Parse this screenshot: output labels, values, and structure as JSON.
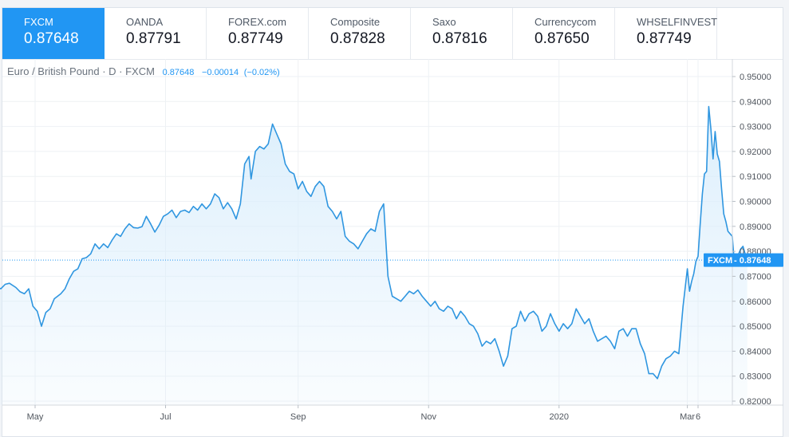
{
  "tabs": [
    {
      "name": "FXCM",
      "price": "0.87648",
      "active": true
    },
    {
      "name": "OANDA",
      "price": "0.87791"
    },
    {
      "name": "FOREX.com",
      "price": "0.87749"
    },
    {
      "name": "Composite",
      "price": "0.87828"
    },
    {
      "name": "Saxo",
      "price": "0.87816"
    },
    {
      "name": "Currencycom",
      "price": "0.87650"
    },
    {
      "name": "WHSELFINVEST",
      "price": "0.87749"
    }
  ],
  "legend": {
    "symbol": "Euro / British Pound · D · FXCM",
    "last": "0.87648",
    "change": "−0.00014",
    "change_pct": "(−0.02%)"
  },
  "price_badge": {
    "label": "FXCM",
    "value": "0.87648"
  },
  "colors": {
    "accent": "#2196f3",
    "line": "#2f96e0",
    "grid": "#eef1f4",
    "fill": "#dbeefc"
  },
  "chart_data": {
    "type": "area",
    "title": "",
    "xlabel": "",
    "ylabel": "",
    "ylim": [
      0.8195,
      0.9525
    ],
    "y_ticks": [
      "0.95000",
      "0.94000",
      "0.93000",
      "0.92000",
      "0.91000",
      "0.90000",
      "0.89000",
      "0.88000",
      "0.87000",
      "0.86000",
      "0.85000",
      "0.84000",
      "0.83000",
      "0.82000"
    ],
    "x_ticks": [
      {
        "label": "May",
        "date": "2019-05-01"
      },
      {
        "label": "Jul",
        "date": "2019-07-01"
      },
      {
        "label": "Sep",
        "date": "2019-09-01"
      },
      {
        "label": "Nov",
        "date": "2019-11-01"
      },
      {
        "label": "2020",
        "date": "2020-01-01"
      },
      {
        "label": "Mar",
        "date": "2020-03-01"
      },
      {
        "label": "6",
        "date": "2020-03-06"
      }
    ],
    "last_value": 0.87648,
    "series": [
      {
        "values": [
          [
            "2019-04-08",
            0.8622
          ],
          [
            "2019-04-10",
            0.8645
          ],
          [
            "2019-04-12",
            0.866
          ],
          [
            "2019-04-15",
            0.865
          ],
          [
            "2019-04-17",
            0.8668
          ],
          [
            "2019-04-19",
            0.8672
          ],
          [
            "2019-04-22",
            0.8655
          ],
          [
            "2019-04-24",
            0.8638
          ],
          [
            "2019-04-26",
            0.863
          ],
          [
            "2019-04-28",
            0.865
          ],
          [
            "2019-04-30",
            0.858
          ],
          [
            "2019-05-02",
            0.856
          ],
          [
            "2019-05-04",
            0.85
          ],
          [
            "2019-05-06",
            0.8555
          ],
          [
            "2019-05-08",
            0.857
          ],
          [
            "2019-05-10",
            0.861
          ],
          [
            "2019-05-13",
            0.863
          ],
          [
            "2019-05-15",
            0.865
          ],
          [
            "2019-05-17",
            0.869
          ],
          [
            "2019-05-19",
            0.872
          ],
          [
            "2019-05-21",
            0.873
          ],
          [
            "2019-05-23",
            0.877
          ],
          [
            "2019-05-25",
            0.8775
          ],
          [
            "2019-05-27",
            0.879
          ],
          [
            "2019-05-29",
            0.883
          ],
          [
            "2019-05-31",
            0.881
          ],
          [
            "2019-06-02",
            0.883
          ],
          [
            "2019-06-04",
            0.8815
          ],
          [
            "2019-06-06",
            0.8845
          ],
          [
            "2019-06-08",
            0.887
          ],
          [
            "2019-06-10",
            0.886
          ],
          [
            "2019-06-12",
            0.889
          ],
          [
            "2019-06-14",
            0.891
          ],
          [
            "2019-06-16",
            0.8895
          ],
          [
            "2019-06-18",
            0.8893
          ],
          [
            "2019-06-20",
            0.8899
          ],
          [
            "2019-06-22",
            0.894
          ],
          [
            "2019-06-24",
            0.891
          ],
          [
            "2019-06-26",
            0.8877
          ],
          [
            "2019-06-28",
            0.8905
          ],
          [
            "2019-06-30",
            0.894
          ],
          [
            "2019-07-02",
            0.895
          ],
          [
            "2019-07-04",
            0.8965
          ],
          [
            "2019-07-06",
            0.8935
          ],
          [
            "2019-07-08",
            0.896
          ],
          [
            "2019-07-10",
            0.8965
          ],
          [
            "2019-07-12",
            0.8955
          ],
          [
            "2019-07-14",
            0.898
          ],
          [
            "2019-07-16",
            0.8965
          ],
          [
            "2019-07-18",
            0.899
          ],
          [
            "2019-07-20",
            0.897
          ],
          [
            "2019-07-22",
            0.899
          ],
          [
            "2019-07-24",
            0.903
          ],
          [
            "2019-07-26",
            0.9015
          ],
          [
            "2019-07-28",
            0.897
          ],
          [
            "2019-07-30",
            0.8995
          ],
          [
            "2019-08-01",
            0.897
          ],
          [
            "2019-08-03",
            0.893
          ],
          [
            "2019-08-05",
            0.899
          ],
          [
            "2019-08-07",
            0.915
          ],
          [
            "2019-08-09",
            0.918
          ],
          [
            "2019-08-10",
            0.909
          ],
          [
            "2019-08-12",
            0.92
          ],
          [
            "2019-08-14",
            0.922
          ],
          [
            "2019-08-16",
            0.921
          ],
          [
            "2019-08-18",
            0.923
          ],
          [
            "2019-08-20",
            0.931
          ],
          [
            "2019-08-22",
            0.927
          ],
          [
            "2019-08-24",
            0.923
          ],
          [
            "2019-08-26",
            0.915
          ],
          [
            "2019-08-28",
            0.912
          ],
          [
            "2019-08-30",
            0.911
          ],
          [
            "2019-09-01",
            0.905
          ],
          [
            "2019-09-03",
            0.908
          ],
          [
            "2019-09-05",
            0.904
          ],
          [
            "2019-09-07",
            0.902
          ],
          [
            "2019-09-09",
            0.906
          ],
          [
            "2019-09-11",
            0.908
          ],
          [
            "2019-09-13",
            0.906
          ],
          [
            "2019-09-15",
            0.898
          ],
          [
            "2019-09-17",
            0.896
          ],
          [
            "2019-09-19",
            0.893
          ],
          [
            "2019-09-21",
            0.896
          ],
          [
            "2019-09-23",
            0.886
          ],
          [
            "2019-09-25",
            0.884
          ],
          [
            "2019-09-27",
            0.883
          ],
          [
            "2019-09-29",
            0.881
          ],
          [
            "2019-10-01",
            0.884
          ],
          [
            "2019-10-03",
            0.887
          ],
          [
            "2019-10-05",
            0.889
          ],
          [
            "2019-10-07",
            0.888
          ],
          [
            "2019-10-09",
            0.896
          ],
          [
            "2019-10-11",
            0.899
          ],
          [
            "2019-10-13",
            0.87
          ],
          [
            "2019-10-15",
            0.862
          ],
          [
            "2019-10-17",
            0.861
          ],
          [
            "2019-10-19",
            0.86
          ],
          [
            "2019-10-21",
            0.862
          ],
          [
            "2019-10-23",
            0.864
          ],
          [
            "2019-10-25",
            0.863
          ],
          [
            "2019-10-27",
            0.8645
          ],
          [
            "2019-10-29",
            0.862
          ],
          [
            "2019-10-31",
            0.86
          ],
          [
            "2019-11-02",
            0.858
          ],
          [
            "2019-11-04",
            0.86
          ],
          [
            "2019-11-06",
            0.857
          ],
          [
            "2019-11-08",
            0.856
          ],
          [
            "2019-11-10",
            0.858
          ],
          [
            "2019-11-12",
            0.857
          ],
          [
            "2019-11-14",
            0.853
          ],
          [
            "2019-11-16",
            0.856
          ],
          [
            "2019-11-18",
            0.854
          ],
          [
            "2019-11-20",
            0.851
          ],
          [
            "2019-11-22",
            0.85
          ],
          [
            "2019-11-24",
            0.847
          ],
          [
            "2019-11-26",
            0.842
          ],
          [
            "2019-11-28",
            0.844
          ],
          [
            "2019-11-30",
            0.843
          ],
          [
            "2019-12-02",
            0.845
          ],
          [
            "2019-12-04",
            0.84
          ],
          [
            "2019-12-06",
            0.834
          ],
          [
            "2019-12-08",
            0.838
          ],
          [
            "2019-12-10",
            0.849
          ],
          [
            "2019-12-12",
            0.85
          ],
          [
            "2019-12-14",
            0.856
          ],
          [
            "2019-12-16",
            0.852
          ],
          [
            "2019-12-18",
            0.855
          ],
          [
            "2019-12-20",
            0.856
          ],
          [
            "2019-12-22",
            0.854
          ],
          [
            "2019-12-24",
            0.848
          ],
          [
            "2019-12-26",
            0.85
          ],
          [
            "2019-12-28",
            0.855
          ],
          [
            "2019-12-30",
            0.851
          ],
          [
            "2020-01-01",
            0.848
          ],
          [
            "2020-01-03",
            0.851
          ],
          [
            "2020-01-05",
            0.849
          ],
          [
            "2020-01-07",
            0.851
          ],
          [
            "2020-01-09",
            0.857
          ],
          [
            "2020-01-11",
            0.854
          ],
          [
            "2020-01-13",
            0.851
          ],
          [
            "2020-01-15",
            0.853
          ],
          [
            "2020-01-17",
            0.848
          ],
          [
            "2020-01-19",
            0.844
          ],
          [
            "2020-01-21",
            0.845
          ],
          [
            "2020-01-23",
            0.846
          ],
          [
            "2020-01-25",
            0.844
          ],
          [
            "2020-01-27",
            0.841
          ],
          [
            "2020-01-29",
            0.848
          ],
          [
            "2020-01-31",
            0.849
          ],
          [
            "2020-02-02",
            0.846
          ],
          [
            "2020-02-04",
            0.849
          ],
          [
            "2020-02-06",
            0.849
          ],
          [
            "2020-02-08",
            0.843
          ],
          [
            "2020-02-10",
            0.839
          ],
          [
            "2020-02-12",
            0.831
          ],
          [
            "2020-02-14",
            0.831
          ],
          [
            "2020-02-16",
            0.829
          ],
          [
            "2020-02-18",
            0.834
          ],
          [
            "2020-02-20",
            0.837
          ],
          [
            "2020-02-22",
            0.838
          ],
          [
            "2020-02-24",
            0.84
          ],
          [
            "2020-02-26",
            0.839
          ],
          [
            "2020-02-28",
            0.858
          ],
          [
            "2020-03-01",
            0.873
          ],
          [
            "2020-03-02",
            0.864
          ],
          [
            "2020-03-03",
            0.868
          ],
          [
            "2020-03-04",
            0.871
          ],
          [
            "2020-03-05",
            0.876
          ],
          [
            "2020-03-06",
            0.878
          ],
          [
            "2020-03-07",
            0.891
          ],
          [
            "2020-03-08",
            0.903
          ],
          [
            "2020-03-09",
            0.911
          ],
          [
            "2020-03-10",
            0.912
          ],
          [
            "2020-03-11",
            0.938
          ],
          [
            "2020-03-12",
            0.929
          ],
          [
            "2020-03-13",
            0.917
          ],
          [
            "2020-03-14",
            0.928
          ],
          [
            "2020-03-15",
            0.919
          ],
          [
            "2020-03-16",
            0.916
          ],
          [
            "2020-03-17",
            0.905
          ],
          [
            "2020-03-18",
            0.895
          ],
          [
            "2020-03-19",
            0.892
          ],
          [
            "2020-03-20",
            0.888
          ],
          [
            "2020-03-21",
            0.887
          ],
          [
            "2020-03-22",
            0.886
          ],
          [
            "2020-03-23",
            0.875
          ],
          [
            "2020-03-24",
            0.877
          ],
          [
            "2020-03-25",
            0.879
          ],
          [
            "2020-03-26",
            0.881
          ],
          [
            "2020-03-27",
            0.882
          ],
          [
            "2020-03-28",
            0.879
          ],
          [
            "2020-03-29",
            0.8765
          ]
        ]
      }
    ]
  }
}
